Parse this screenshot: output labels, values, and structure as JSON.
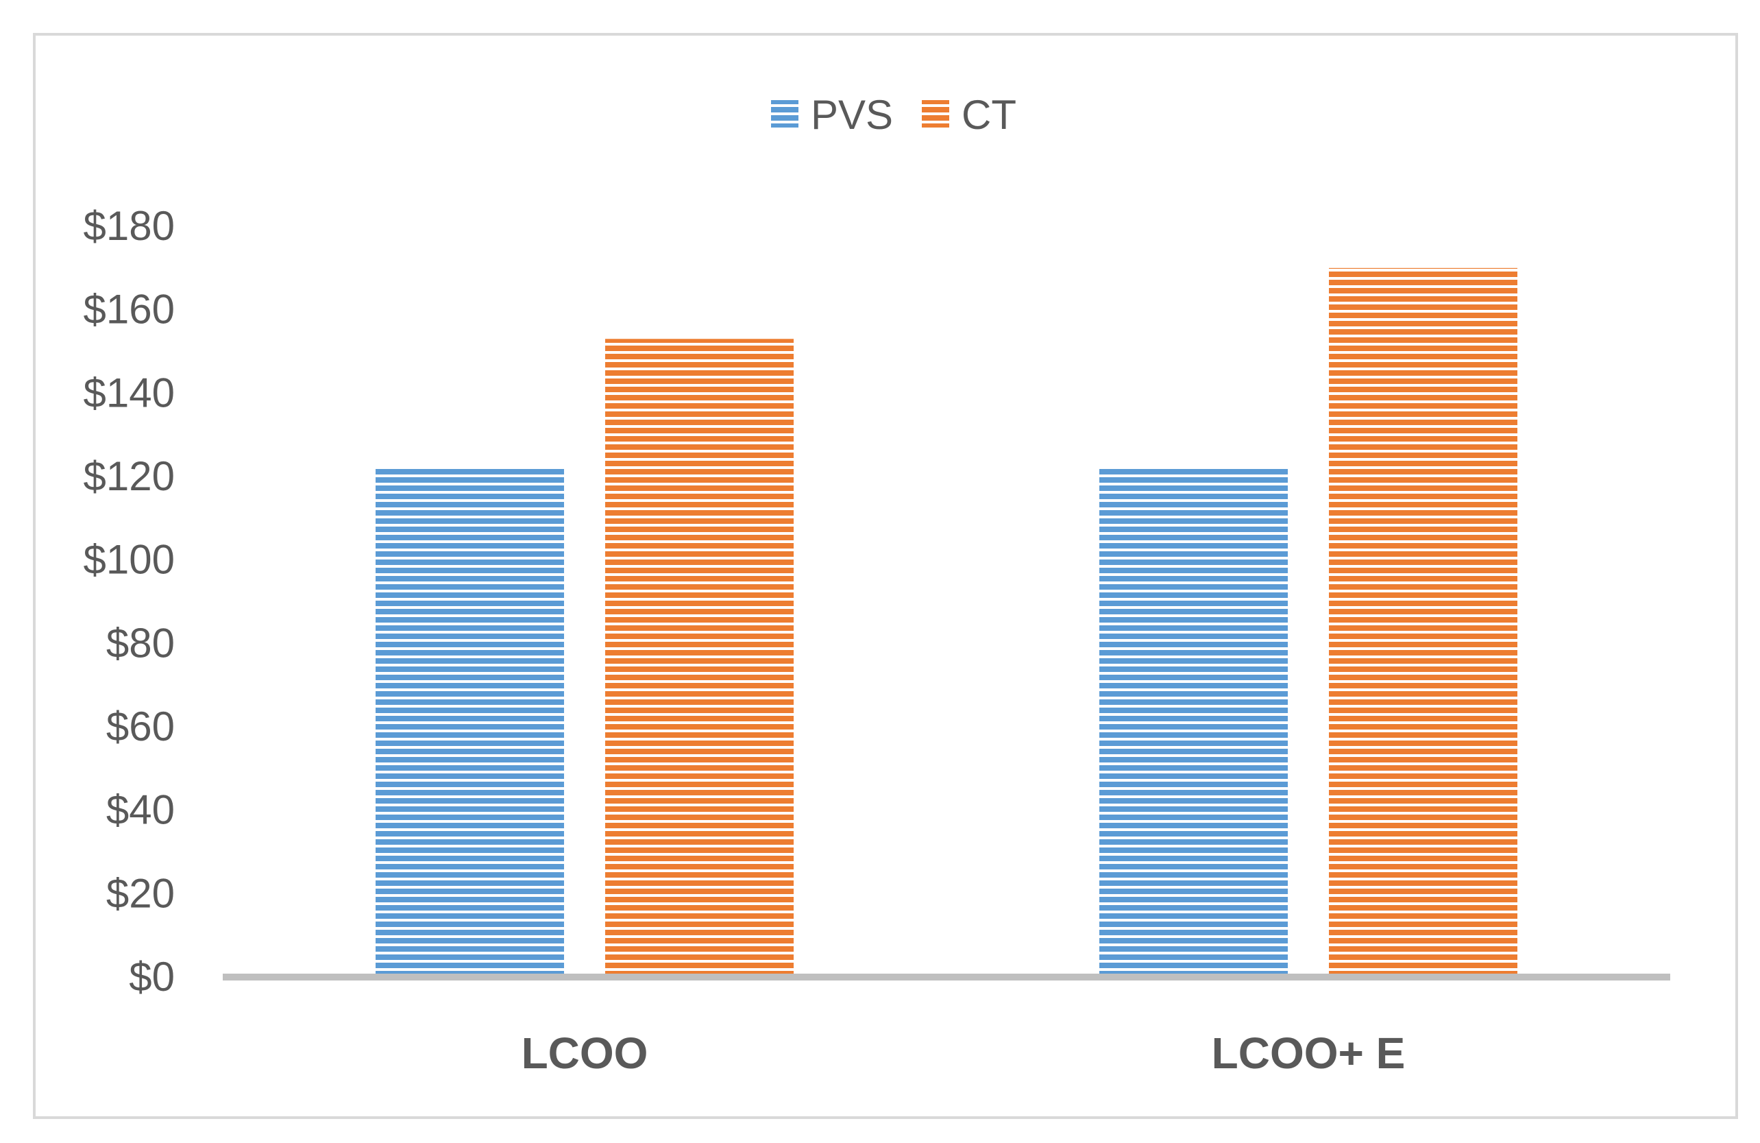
{
  "chart_data": {
    "type": "bar",
    "title": "",
    "xlabel": "",
    "ylabel": "",
    "categories": [
      "LCOO",
      "LCOO+ E"
    ],
    "series": [
      {
        "name": "PVS",
        "values": [
          122,
          122
        ],
        "color": "#5B9BD5"
      },
      {
        "name": "CT",
        "values": [
          153,
          170
        ],
        "color": "#ED7D31"
      }
    ],
    "ylim": [
      0,
      180
    ],
    "y_ticks": [
      0,
      20,
      40,
      60,
      80,
      100,
      120,
      140,
      160,
      180
    ],
    "y_tick_prefix": "$",
    "grid": false,
    "legend_position": "top-center",
    "bar_pattern": "horizontal-stripes"
  }
}
